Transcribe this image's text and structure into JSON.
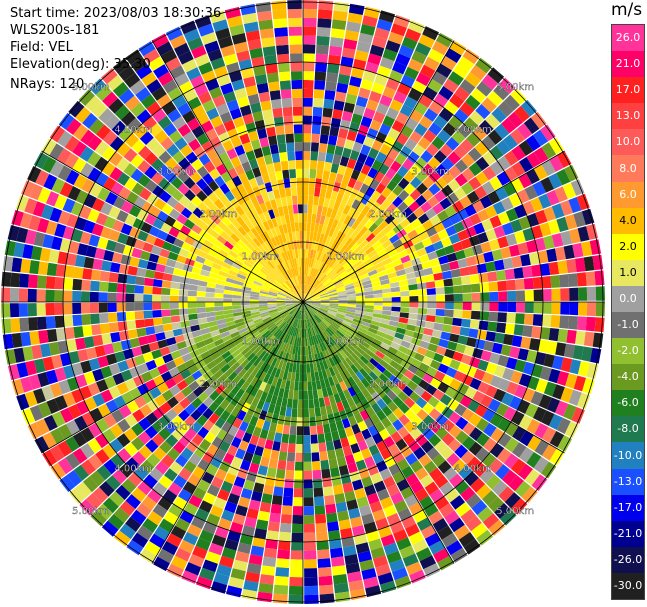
{
  "info": {
    "start_time": "Start time: 2023/08/03 18:30:36",
    "instrument": "WLS200s-181",
    "field": "Field: VEL",
    "elevation": "Elevation(deg): 35.30",
    "nrays": "NRays: 120"
  },
  "colorbar": {
    "unit": "m/s",
    "ticks": [
      "26.0",
      "21.0",
      "17.0",
      "13.0",
      "10.0",
      "8.0",
      "6.0",
      "4.0",
      "2.0",
      "1.0",
      "0.0",
      "-1.0",
      "-2.0",
      "-4.0",
      "-6.0",
      "-8.0",
      "-10.0",
      "-13.0",
      "-17.0",
      "-21.0",
      "-26.0",
      "-30.0"
    ],
    "colors": [
      "#ff3399",
      "#ff0066",
      "#ff2020",
      "#ff4040",
      "#ff5a5a",
      "#ff7a5a",
      "#ff9a30",
      "#ffbb00",
      "#ffff00",
      "#e8e860",
      "#a0a0a0",
      "#707070",
      "#90c030",
      "#6a9a20",
      "#208020",
      "#207a50",
      "#2080c0",
      "#1a50ff",
      "#0000ee",
      "#000090",
      "#101050",
      "#202020"
    ]
  },
  "chart_data": {
    "type": "ppi_radar",
    "field": "VEL",
    "units": "m/s",
    "nrays": 120,
    "elevation_deg": 35.3,
    "range_rings_km": [
      1.0,
      2.0,
      3.0,
      4.0,
      5.0
    ],
    "ring_labels": [
      "1.00km",
      "2.00km",
      "3.00km",
      "4.00km",
      "5.00km"
    ],
    "spokes": 12,
    "velocity_pattern": {
      "north_half": "positive (approx 2.0 to 6.0 m/s, yellow/orange)",
      "south_half": "negative (approx -2.0 to -6.0 m/s, green)",
      "east_west_axis": "near 0.0 m/s (gray)",
      "outer_ranges": "noise (full color range)"
    }
  }
}
